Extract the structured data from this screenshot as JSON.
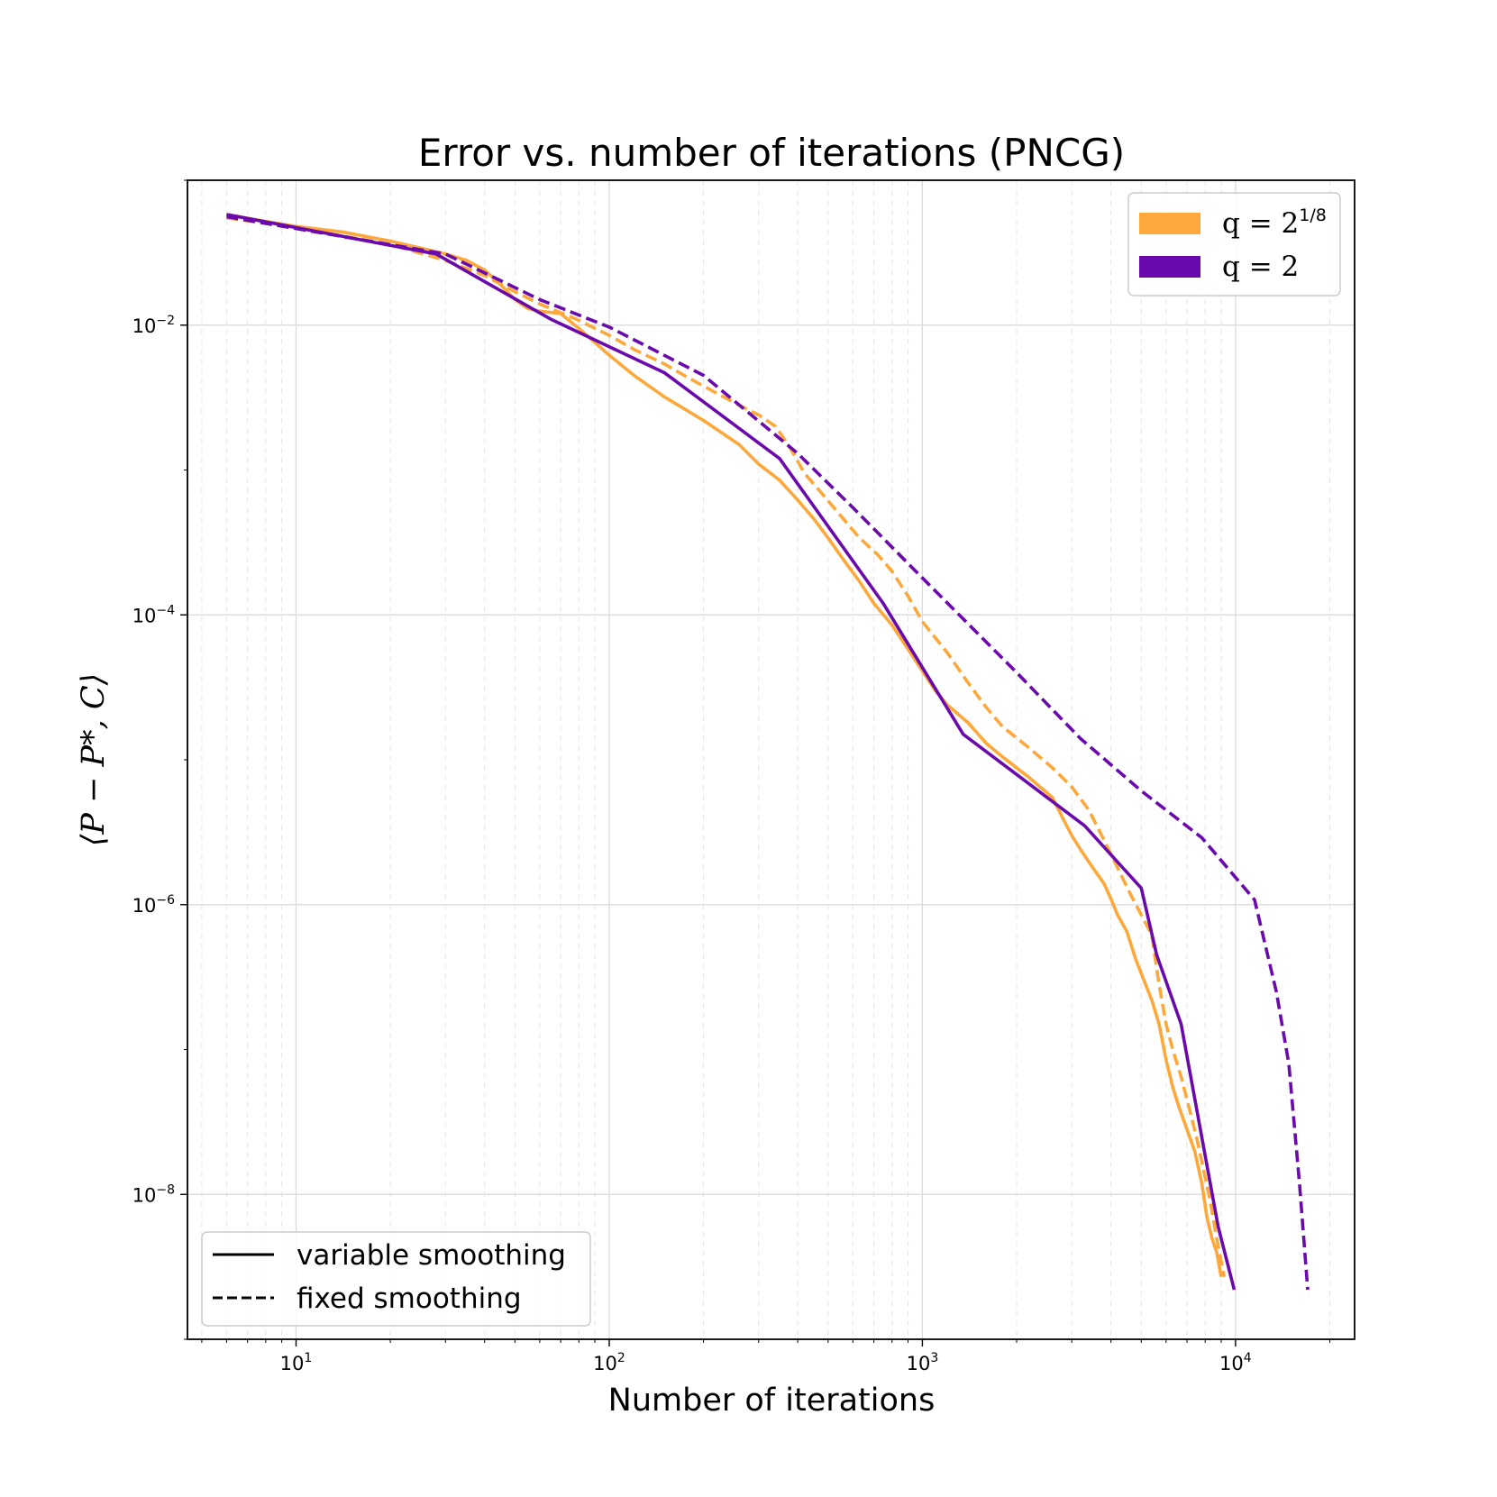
{
  "chart_data": {
    "type": "line",
    "title": "Error vs. number of iterations (PNCG)",
    "xlabel": "Number of iterations",
    "ylabel": "⟨P − P*, C⟩",
    "xscale": "log",
    "yscale": "log",
    "xlim": [
      4.5,
      24000
    ],
    "ylim": [
      1e-09,
      0.1
    ],
    "grid": true,
    "x_ticks": [
      {
        "base": "10",
        "exp": "1",
        "value": 10
      },
      {
        "base": "10",
        "exp": "2",
        "value": 100
      },
      {
        "base": "10",
        "exp": "3",
        "value": 1000
      },
      {
        "base": "10",
        "exp": "4",
        "value": 10000
      }
    ],
    "y_ticks": [
      {
        "base": "10",
        "exp": "−2",
        "value": 0.01
      },
      {
        "base": "10",
        "exp": "−4",
        "value": 0.0001
      },
      {
        "base": "10",
        "exp": "−6",
        "value": 1e-06
      },
      {
        "base": "10",
        "exp": "−8",
        "value": 1e-08
      }
    ],
    "color_legend": {
      "location": "upper right",
      "entries": [
        {
          "label_base": "q = 2",
          "label_sup": "1/8",
          "color": "#fca83a"
        },
        {
          "label_base": "q = 2",
          "label_sup": "",
          "color": "#6a0aac"
        }
      ]
    },
    "style_legend": {
      "location": "lower left",
      "entries": [
        {
          "label": "variable smoothing",
          "linestyle": "solid"
        },
        {
          "label": "fixed smoothing",
          "linestyle": "dashed"
        }
      ]
    },
    "series": [
      {
        "name": "q = 2^(1/8), variable smoothing",
        "color": "#fca83a",
        "linestyle": "solid",
        "x": [
          6,
          8,
          10,
          14,
          20,
          25,
          30,
          35,
          40,
          45,
          50,
          55,
          60,
          70,
          80,
          100,
          120,
          150,
          200,
          260,
          300,
          350,
          400,
          450,
          500,
          560,
          630,
          700,
          800,
          900,
          1000,
          1100,
          1200,
          1400,
          1600,
          1800,
          2200,
          2600,
          2800,
          3000,
          3200,
          3500,
          3800,
          4000,
          4200,
          4500,
          4800,
          5100,
          5400,
          5700,
          6000,
          6300,
          6600,
          7000,
          7400,
          7800,
          8100,
          8400,
          8700,
          9000
        ],
        "y": [
          0.058,
          0.052,
          0.048,
          0.044,
          0.038,
          0.034,
          0.031,
          0.028,
          0.024,
          0.019,
          0.015,
          0.013,
          0.0125,
          0.012,
          0.0095,
          0.0062,
          0.0045,
          0.0032,
          0.0022,
          0.0015,
          0.0011,
          0.00085,
          0.00062,
          0.00046,
          0.00034,
          0.00024,
          0.00017,
          0.00012,
          8.5e-05,
          5.8e-05,
          4.1e-05,
          3e-05,
          2.4e-05,
          1.8e-05,
          1.3e-05,
          1.05e-05,
          7.5e-06,
          5.5e-06,
          4e-06,
          3e-06,
          2.4e-06,
          1.8e-06,
          1.4e-06,
          1.1e-06,
          8.5e-07,
          6.5e-07,
          4.2e-07,
          3e-07,
          2.2e-07,
          1.5e-07,
          8.5e-08,
          5.5e-08,
          4e-08,
          2.8e-08,
          2e-08,
          1.2e-08,
          7e-09,
          5e-09,
          4e-09,
          2.7e-09
        ]
      },
      {
        "name": "q = 2^(1/8), fixed smoothing",
        "color": "#fca83a",
        "linestyle": "dashed",
        "x": [
          6,
          10,
          20,
          30,
          40,
          50,
          60,
          80,
          100,
          120,
          150,
          180,
          220,
          260,
          300,
          340,
          380,
          420,
          480,
          550,
          630,
          720,
          800,
          900,
          1000,
          1200,
          1400,
          1600,
          1800,
          2200,
          2600,
          3000,
          3400,
          3800,
          4200,
          4600,
          5000,
          5400,
          5700,
          6000,
          6300,
          6700,
          7100,
          7500,
          7900,
          8300,
          8700,
          9200
        ],
        "y": [
          0.055,
          0.047,
          0.036,
          0.028,
          0.022,
          0.017,
          0.014,
          0.0108,
          0.0085,
          0.0068,
          0.0054,
          0.0043,
          0.0034,
          0.0028,
          0.0024,
          0.002,
          0.0014,
          0.00095,
          0.00068,
          0.00048,
          0.00034,
          0.00026,
          0.0002,
          0.000135,
          9e-05,
          5.5e-05,
          3.4e-05,
          2.3e-05,
          1.7e-05,
          1.2e-05,
          8.8e-06,
          6.5e-06,
          4.5e-06,
          2.8e-06,
          1.8e-06,
          1.2e-06,
          8.5e-07,
          6.2e-07,
          2.8e-07,
          1.5e-07,
          1e-07,
          6.5e-08,
          4e-08,
          2.5e-08,
          1.5e-08,
          9e-09,
          5e-09,
          2.7e-09
        ]
      },
      {
        "name": "q = 2, variable smoothing",
        "color": "#6a0aac",
        "linestyle": "solid",
        "x": [
          6,
          28,
          65,
          150,
          350,
          750,
          1350,
          3300,
          5000,
          5600,
          6700,
          8800,
          9900
        ],
        "y": [
          0.058,
          0.031,
          0.011,
          0.0047,
          0.0012,
          0.00012,
          1.5e-05,
          3.5e-06,
          1.3e-06,
          4.5e-07,
          1.5e-07,
          6e-09,
          2.2e-09
        ]
      },
      {
        "name": "q = 2, fixed smoothing",
        "color": "#6a0aac",
        "linestyle": "dashed",
        "x": [
          6,
          30,
          60,
          100,
          200,
          400,
          600,
          1000,
          2000,
          3200,
          5000,
          7800,
          11500,
          13500,
          14800,
          16000,
          17000
        ],
        "y": [
          0.056,
          0.031,
          0.015,
          0.0097,
          0.0045,
          0.0013,
          0.00055,
          0.00018,
          4e-05,
          1.4e-05,
          6.1e-06,
          2.9e-06,
          1.08e-06,
          2.5e-07,
          8e-08,
          1.2e-08,
          2.2e-09
        ]
      }
    ]
  }
}
